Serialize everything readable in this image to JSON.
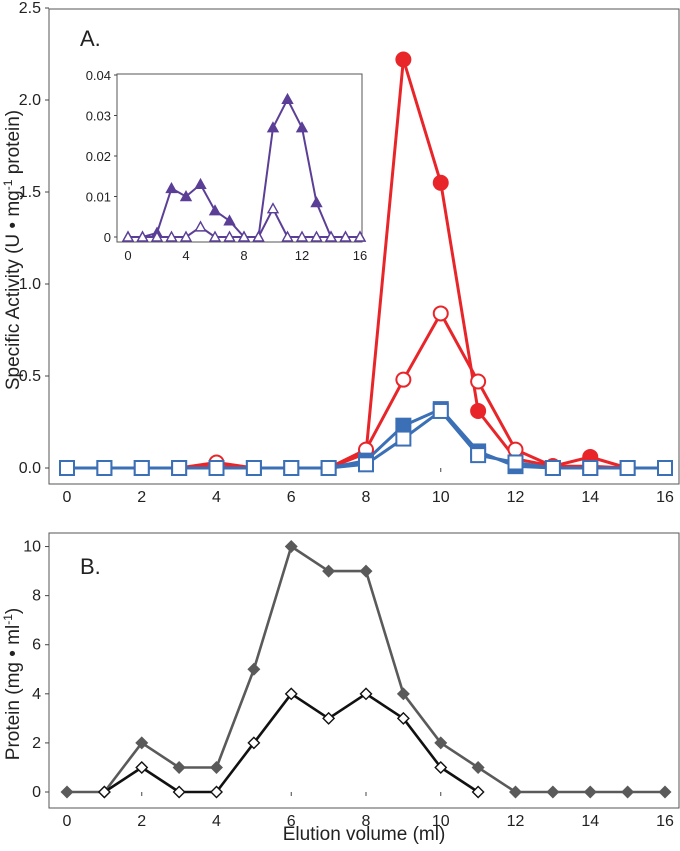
{
  "chart_data": [
    {
      "panel": "A.",
      "type": "line",
      "ylabel": "Specific Activity (U • mg",
      "ylabel_sup": "-1",
      "ylabel_tail": " protein)",
      "xlim": [
        0,
        16
      ],
      "ylim": [
        0,
        2.5
      ],
      "xticks": [
        "0",
        "2",
        "4",
        "6",
        "8",
        "10",
        "12",
        "14",
        "16"
      ],
      "yticks": [
        "0.0",
        "0.5",
        "1.0",
        "1.5",
        "2.0",
        "2.5"
      ],
      "series": [
        {
          "name": "red-filled-circle",
          "color": "#e8262a",
          "marker": "circle",
          "filled": true,
          "x": [
            0,
            1,
            2,
            3,
            4,
            5,
            6,
            7,
            8,
            9,
            10,
            11,
            12,
            13,
            14,
            15,
            16
          ],
          "y": [
            0,
            0,
            0,
            0,
            0.01,
            0,
            0,
            0,
            0.08,
            2.22,
            1.55,
            0.31,
            0.05,
            0.01,
            0.06,
            0,
            0
          ]
        },
        {
          "name": "red-open-circle",
          "color": "#e8262a",
          "marker": "circle",
          "filled": false,
          "x": [
            0,
            1,
            2,
            3,
            4,
            5,
            6,
            7,
            8,
            9,
            10,
            11,
            12,
            13,
            14,
            15,
            16
          ],
          "y": [
            0,
            0,
            0,
            0,
            0.03,
            0,
            0,
            0,
            0.1,
            0.48,
            0.84,
            0.47,
            0.1,
            0.01,
            0.01,
            0,
            0
          ]
        },
        {
          "name": "blue-filled-square",
          "color": "#3b6fb6",
          "marker": "square",
          "filled": true,
          "x": [
            0,
            1,
            2,
            3,
            4,
            5,
            6,
            7,
            8,
            9,
            10,
            11,
            12,
            13,
            14,
            15,
            16
          ],
          "y": [
            0,
            0,
            0,
            0,
            0,
            0,
            0,
            0,
            0.04,
            0.23,
            0.32,
            0.09,
            0.01,
            0,
            0,
            0,
            0
          ]
        },
        {
          "name": "blue-open-square",
          "color": "#3b6fb6",
          "marker": "square",
          "filled": false,
          "x": [
            0,
            1,
            2,
            3,
            4,
            5,
            6,
            7,
            8,
            9,
            10,
            11,
            12,
            13,
            14,
            15,
            16
          ],
          "y": [
            0,
            0,
            0,
            0,
            0,
            0,
            0,
            0,
            0.02,
            0.16,
            0.31,
            0.07,
            0.03,
            0,
            0,
            0,
            0
          ]
        }
      ],
      "inset": {
        "type": "line",
        "xlim": [
          0,
          16
        ],
        "ylim": [
          0,
          0.04
        ],
        "xticks": [
          "0",
          "4",
          "8",
          "12",
          "16"
        ],
        "yticks": [
          "0",
          "0.01",
          "0.02",
          "0.03",
          "0.04"
        ],
        "series": [
          {
            "name": "purple-filled-triangle",
            "color": "#5b3f96",
            "marker": "triangle",
            "filled": true,
            "x": [
              0,
              1,
              2,
              3,
              4,
              5,
              6,
              7,
              8,
              9,
              10,
              11,
              12,
              13,
              14,
              15,
              16
            ],
            "y": [
              0,
              0,
              0.001,
              0.012,
              0.01,
              0.013,
              0.0065,
              0.004,
              0,
              0,
              0.027,
              0.034,
              0.027,
              0.0085,
              0,
              0,
              0
            ]
          },
          {
            "name": "purple-open-triangle",
            "color": "#5b3f96",
            "marker": "triangle",
            "filled": false,
            "x": [
              0,
              1,
              2,
              3,
              4,
              5,
              6,
              7,
              8,
              9,
              10,
              11,
              12,
              13,
              14,
              15,
              16
            ],
            "y": [
              0,
              0,
              0,
              0,
              0,
              0.0025,
              0,
              0,
              0,
              0,
              0.007,
              0,
              0,
              0,
              0,
              0,
              0
            ]
          }
        ]
      }
    },
    {
      "panel": "B.",
      "type": "line",
      "xlabel": "Elution volume (ml)",
      "ylabel": "Protein (mg • ml",
      "ylabel_sup": "-1",
      "ylabel_tail": ")",
      "xlim": [
        0,
        16
      ],
      "ylim": [
        0,
        11
      ],
      "xticks": [
        "0",
        "2",
        "4",
        "6",
        "8",
        "10",
        "12",
        "14",
        "16"
      ],
      "yticks": [
        "0",
        "2",
        "4",
        "6",
        "8",
        "10"
      ],
      "series": [
        {
          "name": "gray-filled-diamond",
          "color": "#5a5a5a",
          "marker": "diamond",
          "filled": true,
          "x": [
            0,
            1,
            2,
            3,
            4,
            5,
            6,
            7,
            8,
            9,
            10,
            11,
            12,
            13,
            14,
            15,
            16
          ],
          "y": [
            0,
            0,
            2,
            1,
            1,
            5,
            10,
            9,
            9,
            4,
            2,
            1,
            0,
            0,
            0,
            0,
            0
          ]
        },
        {
          "name": "black-open-diamond",
          "color": "#111111",
          "marker": "diamond",
          "filled": false,
          "x": [
            1,
            2,
            3,
            4,
            5,
            6,
            7,
            8,
            9,
            10,
            11
          ],
          "y": [
            0,
            1,
            0,
            0,
            2,
            4,
            3,
            4,
            3,
            1,
            0
          ]
        }
      ]
    }
  ]
}
